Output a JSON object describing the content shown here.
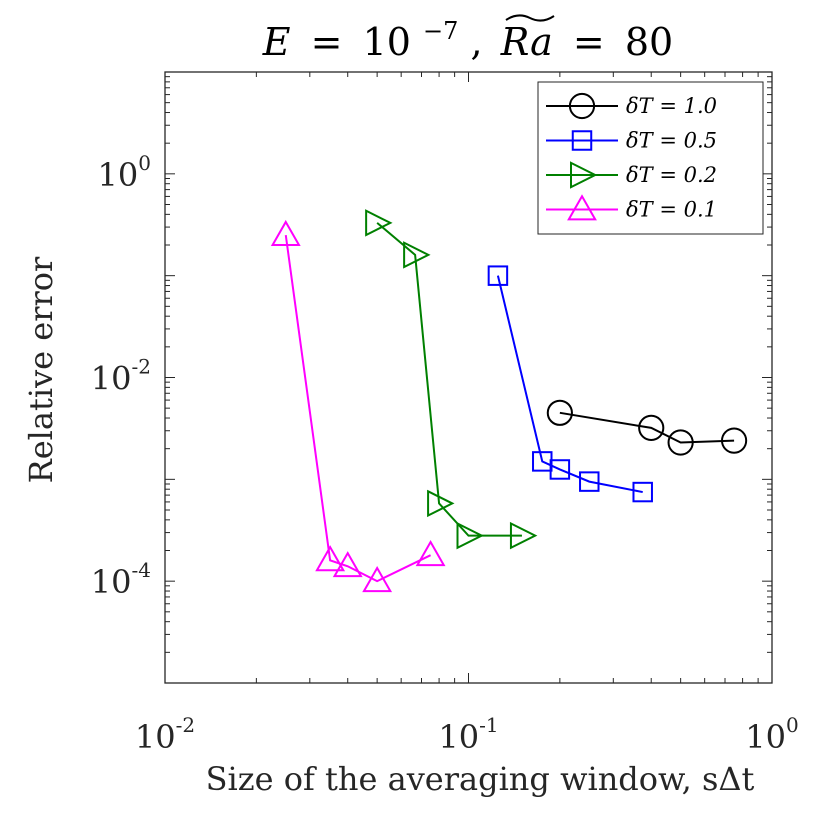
{
  "chart_data": {
    "type": "line",
    "title": "E = 10⁻⁷, Ra = 80",
    "title_parts": {
      "lhs": "E",
      "eq1": "=",
      "base": "10",
      "exp": "−7",
      "sep": ",",
      "ra": "Ra",
      "eq2": "=",
      "value": "80"
    },
    "xlabel": "Size of the averaging window, sΔt",
    "ylabel": "Relative error",
    "xscale": "log",
    "yscale": "log",
    "xlim": [
      0.01,
      1
    ],
    "ylim": [
      1e-05,
      10
    ],
    "x_ticks": [
      {
        "value": 0.01,
        "base": "10",
        "exp": "-2"
      },
      {
        "value": 0.1,
        "base": "10",
        "exp": "-1"
      },
      {
        "value": 1,
        "base": "10",
        "exp": "0"
      }
    ],
    "y_ticks": [
      {
        "value": 0.0001,
        "base": "10",
        "exp": "-4"
      },
      {
        "value": 0.01,
        "base": "10",
        "exp": "-2"
      },
      {
        "value": 1,
        "base": "10",
        "exp": "0"
      }
    ],
    "grid": false,
    "legend_position": "top-right",
    "series": [
      {
        "name": "δT = 1.0",
        "color": "#000000",
        "marker": "circle",
        "x": [
          0.2,
          0.4,
          0.5,
          0.75
        ],
        "y": [
          0.0045,
          0.0032,
          0.0023,
          0.0024
        ]
      },
      {
        "name": "δT = 0.5",
        "color": "#0000ff",
        "marker": "square",
        "x": [
          0.125,
          0.175,
          0.2,
          0.25,
          0.375
        ],
        "y": [
          0.1,
          0.0015,
          0.00125,
          0.00095,
          0.00075
        ]
      },
      {
        "name": "δT = 0.2",
        "color": "#008000",
        "marker": "triangle-right",
        "x": [
          0.05,
          0.0667,
          0.08,
          0.1,
          0.15
        ],
        "y": [
          0.33,
          0.16,
          0.00058,
          0.00028,
          0.00028
        ]
      },
      {
        "name": "δT = 0.1",
        "color": "#ff00ff",
        "marker": "triangle-up",
        "x": [
          0.025,
          0.035,
          0.04,
          0.05,
          0.075
        ],
        "y": [
          0.25,
          0.00016,
          0.00014,
          0.0001,
          0.00018
        ]
      }
    ]
  }
}
